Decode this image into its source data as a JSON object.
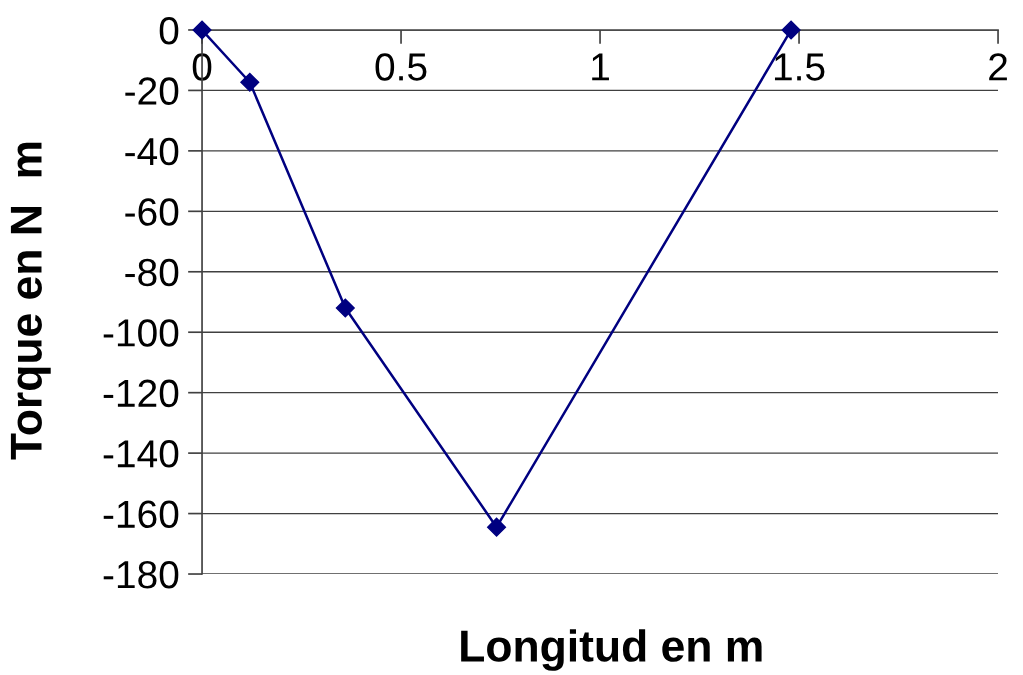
{
  "chart_data": {
    "type": "line",
    "xlabel": "Longitud en m",
    "ylabel": "Torque en N  m",
    "x": [
      0,
      0.12,
      0.36,
      0.74,
      1.48
    ],
    "series": [
      {
        "color": "#000080",
        "values": [
          0,
          -17.3,
          -92,
          -164.5,
          0
        ]
      }
    ],
    "xlim": [
      0,
      2
    ],
    "xticks": [
      0,
      0.5,
      1,
      1.5,
      2
    ],
    "ylim": [
      -180,
      0
    ],
    "yticks": [
      -180,
      -160,
      -140,
      -120,
      -100,
      -80,
      -60,
      -40,
      -20,
      0
    ],
    "grid": "y",
    "marker": "diamond",
    "line_style": "solid"
  }
}
